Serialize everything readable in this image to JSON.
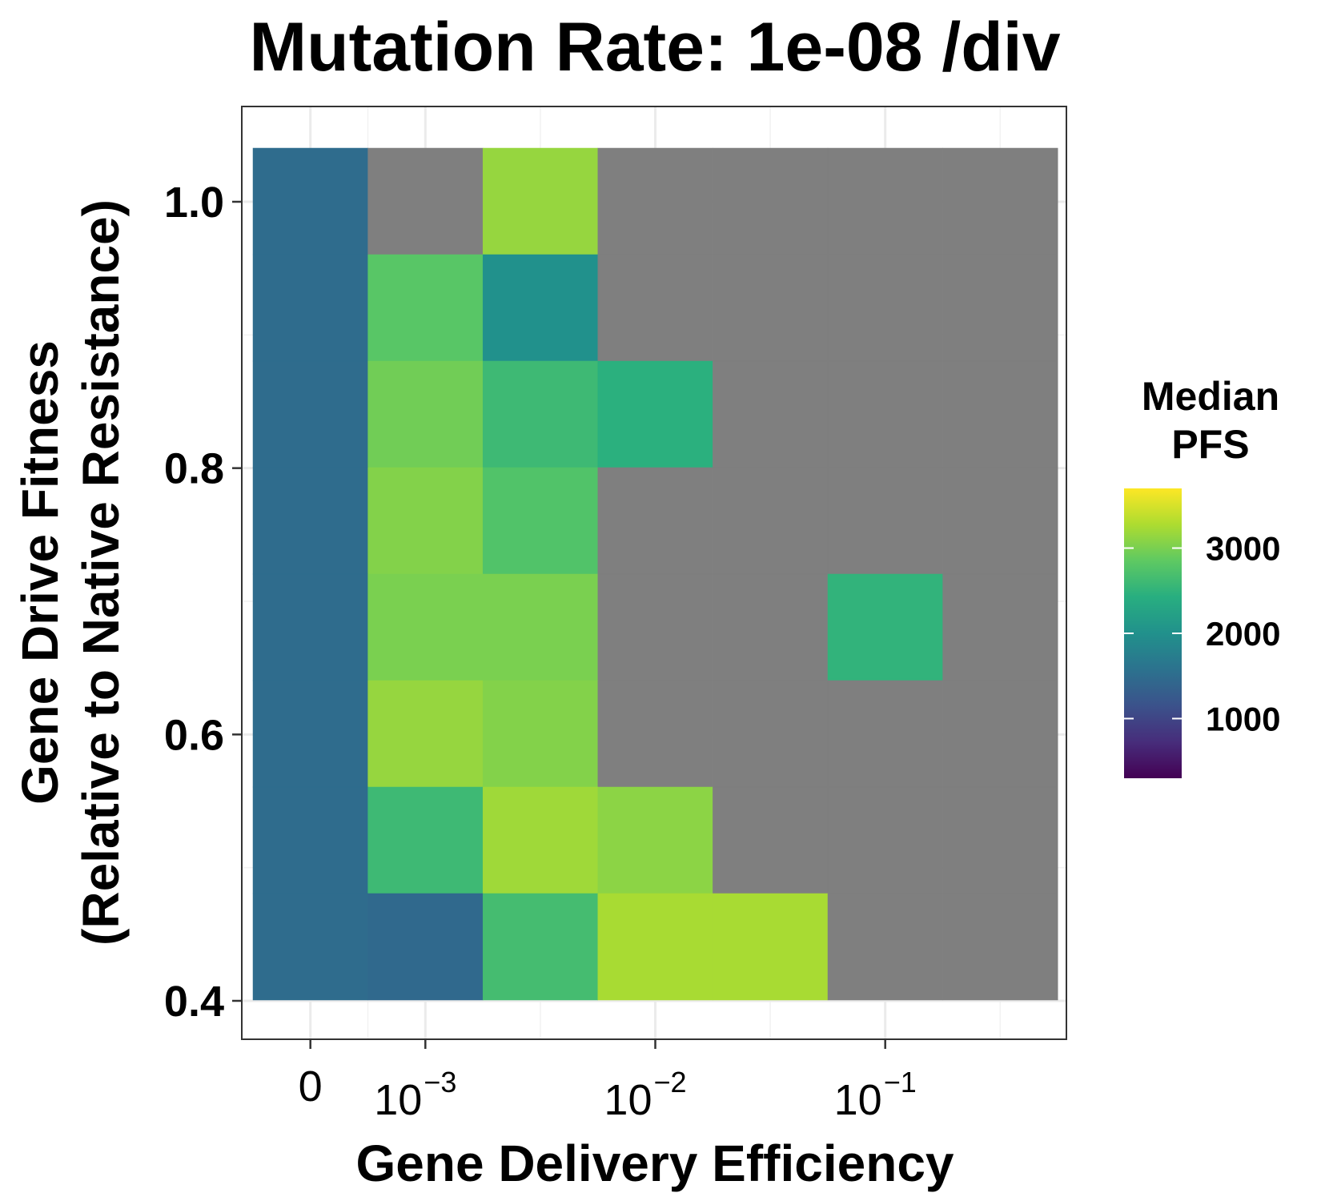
{
  "chart_data": {
    "type": "heatmap",
    "title": "Mutation Rate: 1e-08 /div",
    "xlabel": "Gene Delivery Efficiency",
    "ylabel_line1": "Gene Drive Fitness",
    "ylabel_line2": "(Relative to Native Resistance)",
    "x_tick_labels": [
      {
        "base": "0",
        "exp": ""
      },
      {
        "base": "10",
        "exp": "−3"
      },
      {
        "base": "10",
        "exp": "−2"
      },
      {
        "base": "10",
        "exp": "−1"
      }
    ],
    "y_tick_labels": [
      "1.0",
      "0.8",
      "0.6",
      "0.4"
    ],
    "y_ticks": [
      1.0,
      0.8,
      0.6,
      0.4
    ],
    "ylim": [
      0.4,
      1.0
    ],
    "n_cols": 7,
    "y_values": [
      1.0,
      0.92,
      0.84,
      0.76,
      0.68,
      0.6,
      0.52,
      0.44
    ],
    "values": [
      [
        1500,
        null,
        3150,
        null,
        null,
        null,
        null
      ],
      [
        1500,
        2800,
        2000,
        null,
        null,
        null,
        null
      ],
      [
        1500,
        2950,
        2600,
        2450,
        null,
        null,
        null
      ],
      [
        1500,
        3050,
        2750,
        null,
        null,
        null,
        null
      ],
      [
        1500,
        3000,
        3000,
        null,
        null,
        2500,
        null
      ],
      [
        1500,
        3150,
        3050,
        null,
        null,
        null,
        null
      ],
      [
        1500,
        2600,
        3200,
        3100,
        null,
        null,
        null
      ],
      [
        1500,
        1450,
        2650,
        3250,
        3250,
        null,
        null
      ]
    ],
    "na_color": "#7f7f7f",
    "colorscale": "viridis",
    "color_range": [
      300,
      3700
    ],
    "legend": {
      "title_line1": "Median",
      "title_line2": "PFS",
      "ticks": [
        1000,
        2000,
        3000
      ],
      "tick_labels": [
        "1000",
        "2000",
        "3000"
      ]
    },
    "grid": true,
    "theme": "bw"
  }
}
